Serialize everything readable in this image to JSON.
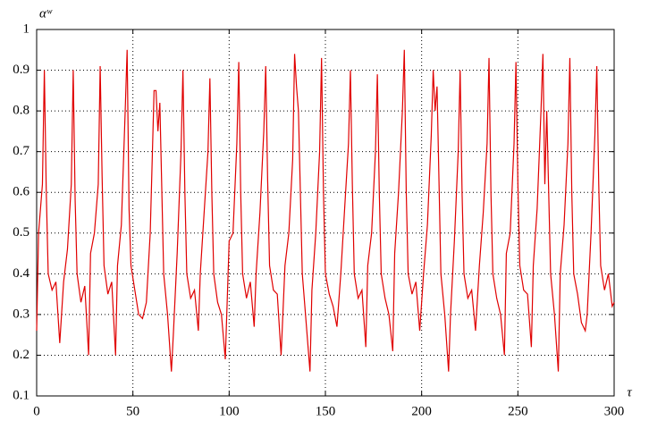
{
  "chart_data": {
    "type": "line",
    "xlabel": "τ",
    "ylabel": "αʷ",
    "color": "#e00000",
    "x": [
      0,
      1,
      3,
      4,
      5,
      6,
      8,
      10,
      12,
      14,
      16,
      18,
      19,
      20,
      21,
      23,
      25,
      27,
      28,
      30,
      32,
      33,
      34,
      35,
      37,
      39,
      41,
      42,
      44,
      46,
      47,
      48,
      49,
      51,
      53,
      55,
      57,
      59,
      61,
      62,
      63,
      64,
      66,
      68,
      70,
      71,
      73,
      75,
      76,
      77,
      78,
      80,
      82,
      84,
      85,
      87,
      89,
      90,
      91,
      92,
      94,
      96,
      98,
      100,
      102,
      104,
      105,
      106,
      107,
      109,
      111,
      113,
      114,
      116,
      118,
      119,
      120,
      121,
      123,
      125,
      127,
      129,
      131,
      133,
      134,
      135,
      136,
      138,
      140,
      142,
      143,
      145,
      147,
      148,
      149,
      150,
      152,
      154,
      156,
      158,
      160,
      162,
      163,
      164,
      165,
      167,
      169,
      171,
      172,
      174,
      176,
      177,
      178,
      179,
      181,
      183,
      185,
      186,
      188,
      190,
      191,
      192,
      193,
      195,
      197,
      199,
      201,
      203,
      205,
      206,
      207,
      208,
      210,
      212,
      214,
      215,
      217,
      219,
      220,
      221,
      222,
      224,
      226,
      228,
      230,
      232,
      234,
      235,
      236,
      237,
      239,
      241,
      243,
      244,
      246,
      248,
      249,
      250,
      251,
      253,
      255,
      257,
      258,
      260,
      262,
      263,
      264,
      265,
      267,
      269,
      271,
      272,
      274,
      276,
      277,
      278,
      279,
      281,
      283,
      285,
      286,
      288,
      290,
      291,
      292,
      293,
      295,
      297,
      299,
      300
    ],
    "values": [
      0.26,
      0.5,
      0.62,
      0.9,
      0.6,
      0.4,
      0.36,
      0.38,
      0.23,
      0.38,
      0.46,
      0.62,
      0.9,
      0.58,
      0.4,
      0.33,
      0.37,
      0.2,
      0.45,
      0.5,
      0.62,
      0.91,
      0.64,
      0.42,
      0.35,
      0.38,
      0.2,
      0.42,
      0.52,
      0.8,
      0.95,
      0.56,
      0.42,
      0.36,
      0.3,
      0.29,
      0.33,
      0.5,
      0.85,
      0.85,
      0.75,
      0.82,
      0.4,
      0.3,
      0.16,
      0.25,
      0.45,
      0.7,
      0.9,
      0.6,
      0.4,
      0.34,
      0.36,
      0.26,
      0.4,
      0.55,
      0.7,
      0.88,
      0.6,
      0.4,
      0.33,
      0.3,
      0.19,
      0.48,
      0.5,
      0.72,
      0.92,
      0.6,
      0.4,
      0.34,
      0.38,
      0.27,
      0.4,
      0.55,
      0.75,
      0.91,
      0.63,
      0.42,
      0.36,
      0.35,
      0.2,
      0.42,
      0.5,
      0.68,
      0.94,
      0.86,
      0.8,
      0.4,
      0.28,
      0.16,
      0.36,
      0.5,
      0.7,
      0.93,
      0.6,
      0.4,
      0.35,
      0.32,
      0.27,
      0.4,
      0.56,
      0.72,
      0.9,
      0.62,
      0.4,
      0.34,
      0.36,
      0.22,
      0.42,
      0.5,
      0.7,
      0.89,
      0.6,
      0.4,
      0.34,
      0.3,
      0.21,
      0.45,
      0.6,
      0.8,
      0.95,
      0.6,
      0.4,
      0.35,
      0.38,
      0.26,
      0.4,
      0.52,
      0.74,
      0.9,
      0.8,
      0.86,
      0.4,
      0.3,
      0.16,
      0.3,
      0.48,
      0.7,
      0.9,
      0.6,
      0.4,
      0.34,
      0.36,
      0.26,
      0.42,
      0.55,
      0.72,
      0.93,
      0.6,
      0.4,
      0.34,
      0.3,
      0.2,
      0.45,
      0.5,
      0.72,
      0.92,
      0.62,
      0.42,
      0.36,
      0.35,
      0.22,
      0.42,
      0.56,
      0.8,
      0.94,
      0.62,
      0.8,
      0.4,
      0.3,
      0.16,
      0.4,
      0.52,
      0.72,
      0.93,
      0.6,
      0.4,
      0.35,
      0.28,
      0.26,
      0.3,
      0.5,
      0.74,
      0.91,
      0.62,
      0.42,
      0.36,
      0.4,
      0.32,
      0.33
    ],
    "xlim": [
      0,
      300
    ],
    "xticks": [
      0,
      50,
      100,
      150,
      200,
      250,
      300
    ],
    "ylim": [
      0.1,
      1
    ],
    "yticks": [
      0.1,
      0.2,
      0.3,
      0.4,
      0.5,
      0.6,
      0.7,
      0.8,
      0.9,
      1
    ],
    "grid": true
  }
}
